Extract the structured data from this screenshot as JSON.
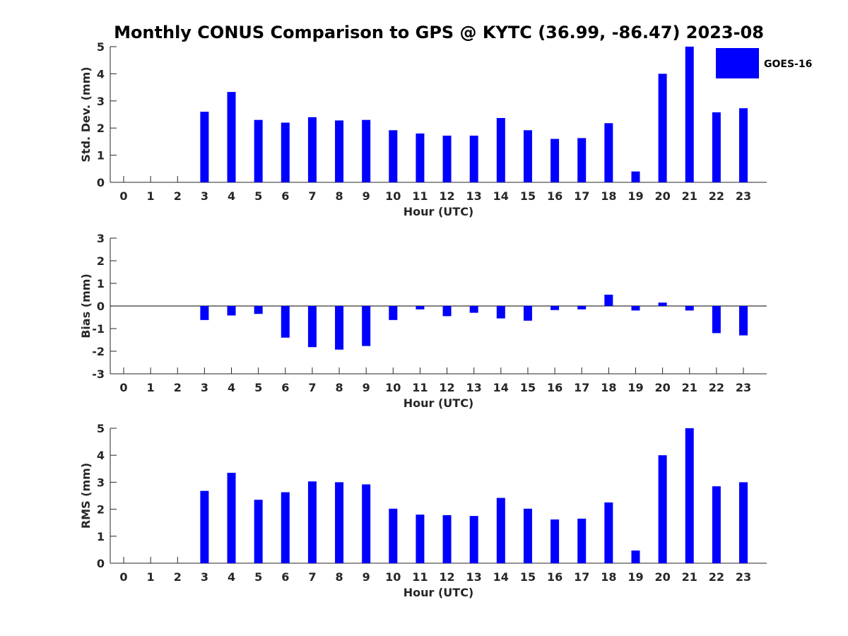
{
  "chart_data": {
    "type": "bar",
    "title": "Monthly CONUS Comparison to GPS @ KYTC (36.99, -86.47) 2023-08",
    "legend": {
      "labels": [
        "GOES-16"
      ],
      "placement": "top-right"
    },
    "bar_color": "#0000ff",
    "categories": [
      "0",
      "1",
      "2",
      "3",
      "4",
      "5",
      "6",
      "7",
      "8",
      "9",
      "10",
      "11",
      "12",
      "13",
      "14",
      "15",
      "16",
      "17",
      "18",
      "19",
      "20",
      "21",
      "22",
      "23"
    ],
    "panels": [
      {
        "ylabel": "Std. Dev. (mm)",
        "xlabel": "Hour (UTC)",
        "ylim": [
          0,
          5
        ],
        "yticks": [
          "0",
          "1",
          "2",
          "3",
          "4",
          "5"
        ],
        "series": [
          {
            "name": "GOES-16",
            "values": [
              null,
              null,
              null,
              2.6,
              3.33,
              2.3,
              2.2,
              2.4,
              2.28,
              2.3,
              1.92,
              1.8,
              1.72,
              1.72,
              2.37,
              1.92,
              1.6,
              1.63,
              2.18,
              0.4,
              4.0,
              5.0,
              2.58,
              2.73
            ]
          }
        ]
      },
      {
        "ylabel": "Bias (mm)",
        "xlabel": "Hour (UTC)",
        "ylim": [
          -3,
          3
        ],
        "yticks": [
          "-3",
          "-2",
          "-1",
          "0",
          "1",
          "2",
          "3"
        ],
        "series": [
          {
            "name": "GOES-16",
            "values": [
              null,
              null,
              null,
              -0.62,
              -0.42,
              -0.35,
              -1.4,
              -1.82,
              -1.93,
              -1.77,
              -0.62,
              -0.15,
              -0.45,
              -0.3,
              -0.55,
              -0.65,
              -0.18,
              -0.15,
              0.5,
              -0.2,
              0.15,
              -0.2,
              -1.2,
              -1.3
            ]
          }
        ]
      },
      {
        "ylabel": "RMS (mm)",
        "xlabel": "Hour (UTC)",
        "ylim": [
          0,
          5
        ],
        "yticks": [
          "0",
          "1",
          "2",
          "3",
          "4",
          "5"
        ],
        "series": [
          {
            "name": "GOES-16",
            "values": [
              null,
              null,
              null,
              2.68,
              3.35,
              2.35,
              2.63,
              3.03,
              3.0,
              2.92,
              2.02,
              1.8,
              1.78,
              1.75,
              2.42,
              2.02,
              1.62,
              1.65,
              2.25,
              0.47,
              4.0,
              5.0,
              2.85,
              3.0
            ]
          }
        ]
      }
    ]
  }
}
